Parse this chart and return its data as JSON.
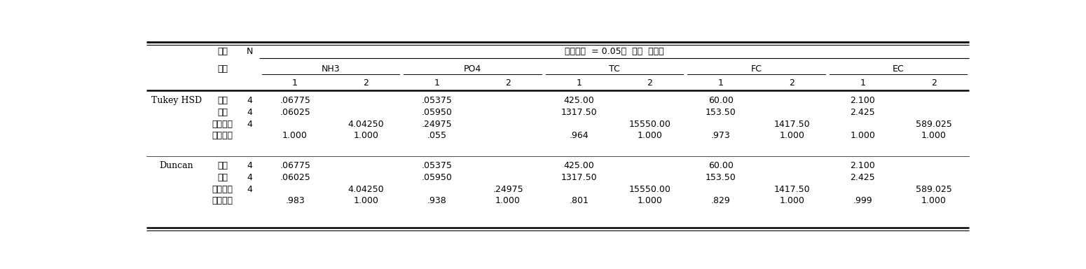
{
  "title_header": "유의수준  = 0.05에  대한  부집단",
  "label_jijum": "지점",
  "label_teukseong": "특성",
  "label_N": "N",
  "group_labels": [
    "NH3",
    "PO4",
    "TC",
    "FC",
    "EC"
  ],
  "col_numbers": [
    "1",
    "2",
    "1",
    "2",
    "1",
    "2",
    "1",
    "2",
    "1",
    "2"
  ],
  "methods": [
    "Tukey HSD",
    "Duncan"
  ],
  "rows_tukey": [
    [
      "상류",
      "4",
      ".06775",
      "",
      ".05375",
      "",
      "425.00",
      "",
      "60.00",
      "",
      "2.100",
      ""
    ],
    [
      "하류",
      "4",
      ".06025",
      "",
      ".05950",
      "",
      "1317.50",
      "",
      "153.50",
      "",
      "2.425",
      ""
    ],
    [
      "유입지역",
      "4",
      "",
      "4.04250",
      ".24975",
      "",
      "",
      "15550.00",
      "",
      "1417.50",
      "",
      "589.025"
    ],
    [
      "유의확률",
      "",
      "1.000",
      "1.000",
      ".055",
      "",
      ".964",
      "1.000",
      ".973",
      "1.000",
      "1.000",
      "1.000"
    ]
  ],
  "rows_duncan": [
    [
      "상류",
      "4",
      ".06775",
      "",
      ".05375",
      "",
      "425.00",
      "",
      "60.00",
      "",
      "2.100",
      ""
    ],
    [
      "하류",
      "4",
      ".06025",
      "",
      ".05950",
      "",
      "1317.50",
      "",
      "153.50",
      "",
      "2.425",
      ""
    ],
    [
      "유입지역",
      "4",
      "",
      "4.04250",
      "",
      ".24975",
      "",
      "15550.00",
      "",
      "1417.50",
      "",
      "589.025"
    ],
    [
      "유의확률",
      "",
      ".983",
      "1.000",
      ".938",
      "1.000",
      ".801",
      "1.000",
      ".829",
      "1.000",
      ".999",
      "1.000"
    ]
  ],
  "font_size": 9.0,
  "bg_color": "#ffffff"
}
